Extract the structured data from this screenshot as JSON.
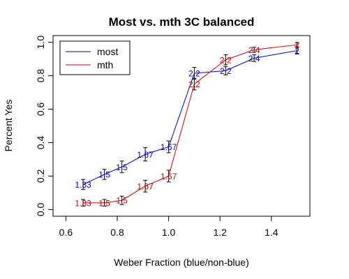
{
  "chart_data": {
    "type": "line",
    "title": "Most vs. mth 3C balanced",
    "xlabel": "Weber Fraction (blue/non-blue)",
    "ylabel": "Percent Yes",
    "xlim": [
      0.55,
      1.55
    ],
    "ylim": [
      -0.04,
      1.04
    ],
    "xticks": [
      "0.6",
      "0.8",
      "1.0",
      "1.2",
      "1.4"
    ],
    "yticks": [
      "0.0",
      "0.2",
      "0.4",
      "0.6",
      "0.8",
      "1.0"
    ],
    "legend_position": "top-left",
    "series": [
      {
        "name": "most",
        "color": "#0000cc",
        "x": [
          0.667,
          0.75,
          0.818,
          0.909,
          1.0,
          1.1,
          1.222,
          1.333,
          1.5
        ],
        "y": [
          0.15,
          0.21,
          0.255,
          0.33,
          0.375,
          0.815,
          0.83,
          0.905,
          0.95
        ],
        "err": [
          0.03,
          0.03,
          0.035,
          0.04,
          0.035,
          0.035,
          0.025,
          0.02,
          0.02
        ],
        "point_labels": [
          "1.33",
          "1.5",
          "1.5",
          "1.67",
          "1.67",
          "2.2",
          "2.2",
          "2.4",
          "2"
        ]
      },
      {
        "name": "mth",
        "color": "#cc0000",
        "x": [
          0.667,
          0.75,
          0.818,
          0.909,
          1.0,
          1.1,
          1.222,
          1.333,
          1.5
        ],
        "y": [
          0.04,
          0.04,
          0.055,
          0.14,
          0.2,
          0.75,
          0.895,
          0.955,
          0.985
        ],
        "err": [
          0.02,
          0.02,
          0.025,
          0.035,
          0.035,
          0.035,
          0.03,
          0.015,
          0.012
        ],
        "point_labels": [
          "1.33",
          "1.5",
          "1.5",
          "1.67",
          "1.67",
          "2.2",
          "2.2",
          "2.4",
          "2"
        ]
      }
    ]
  }
}
